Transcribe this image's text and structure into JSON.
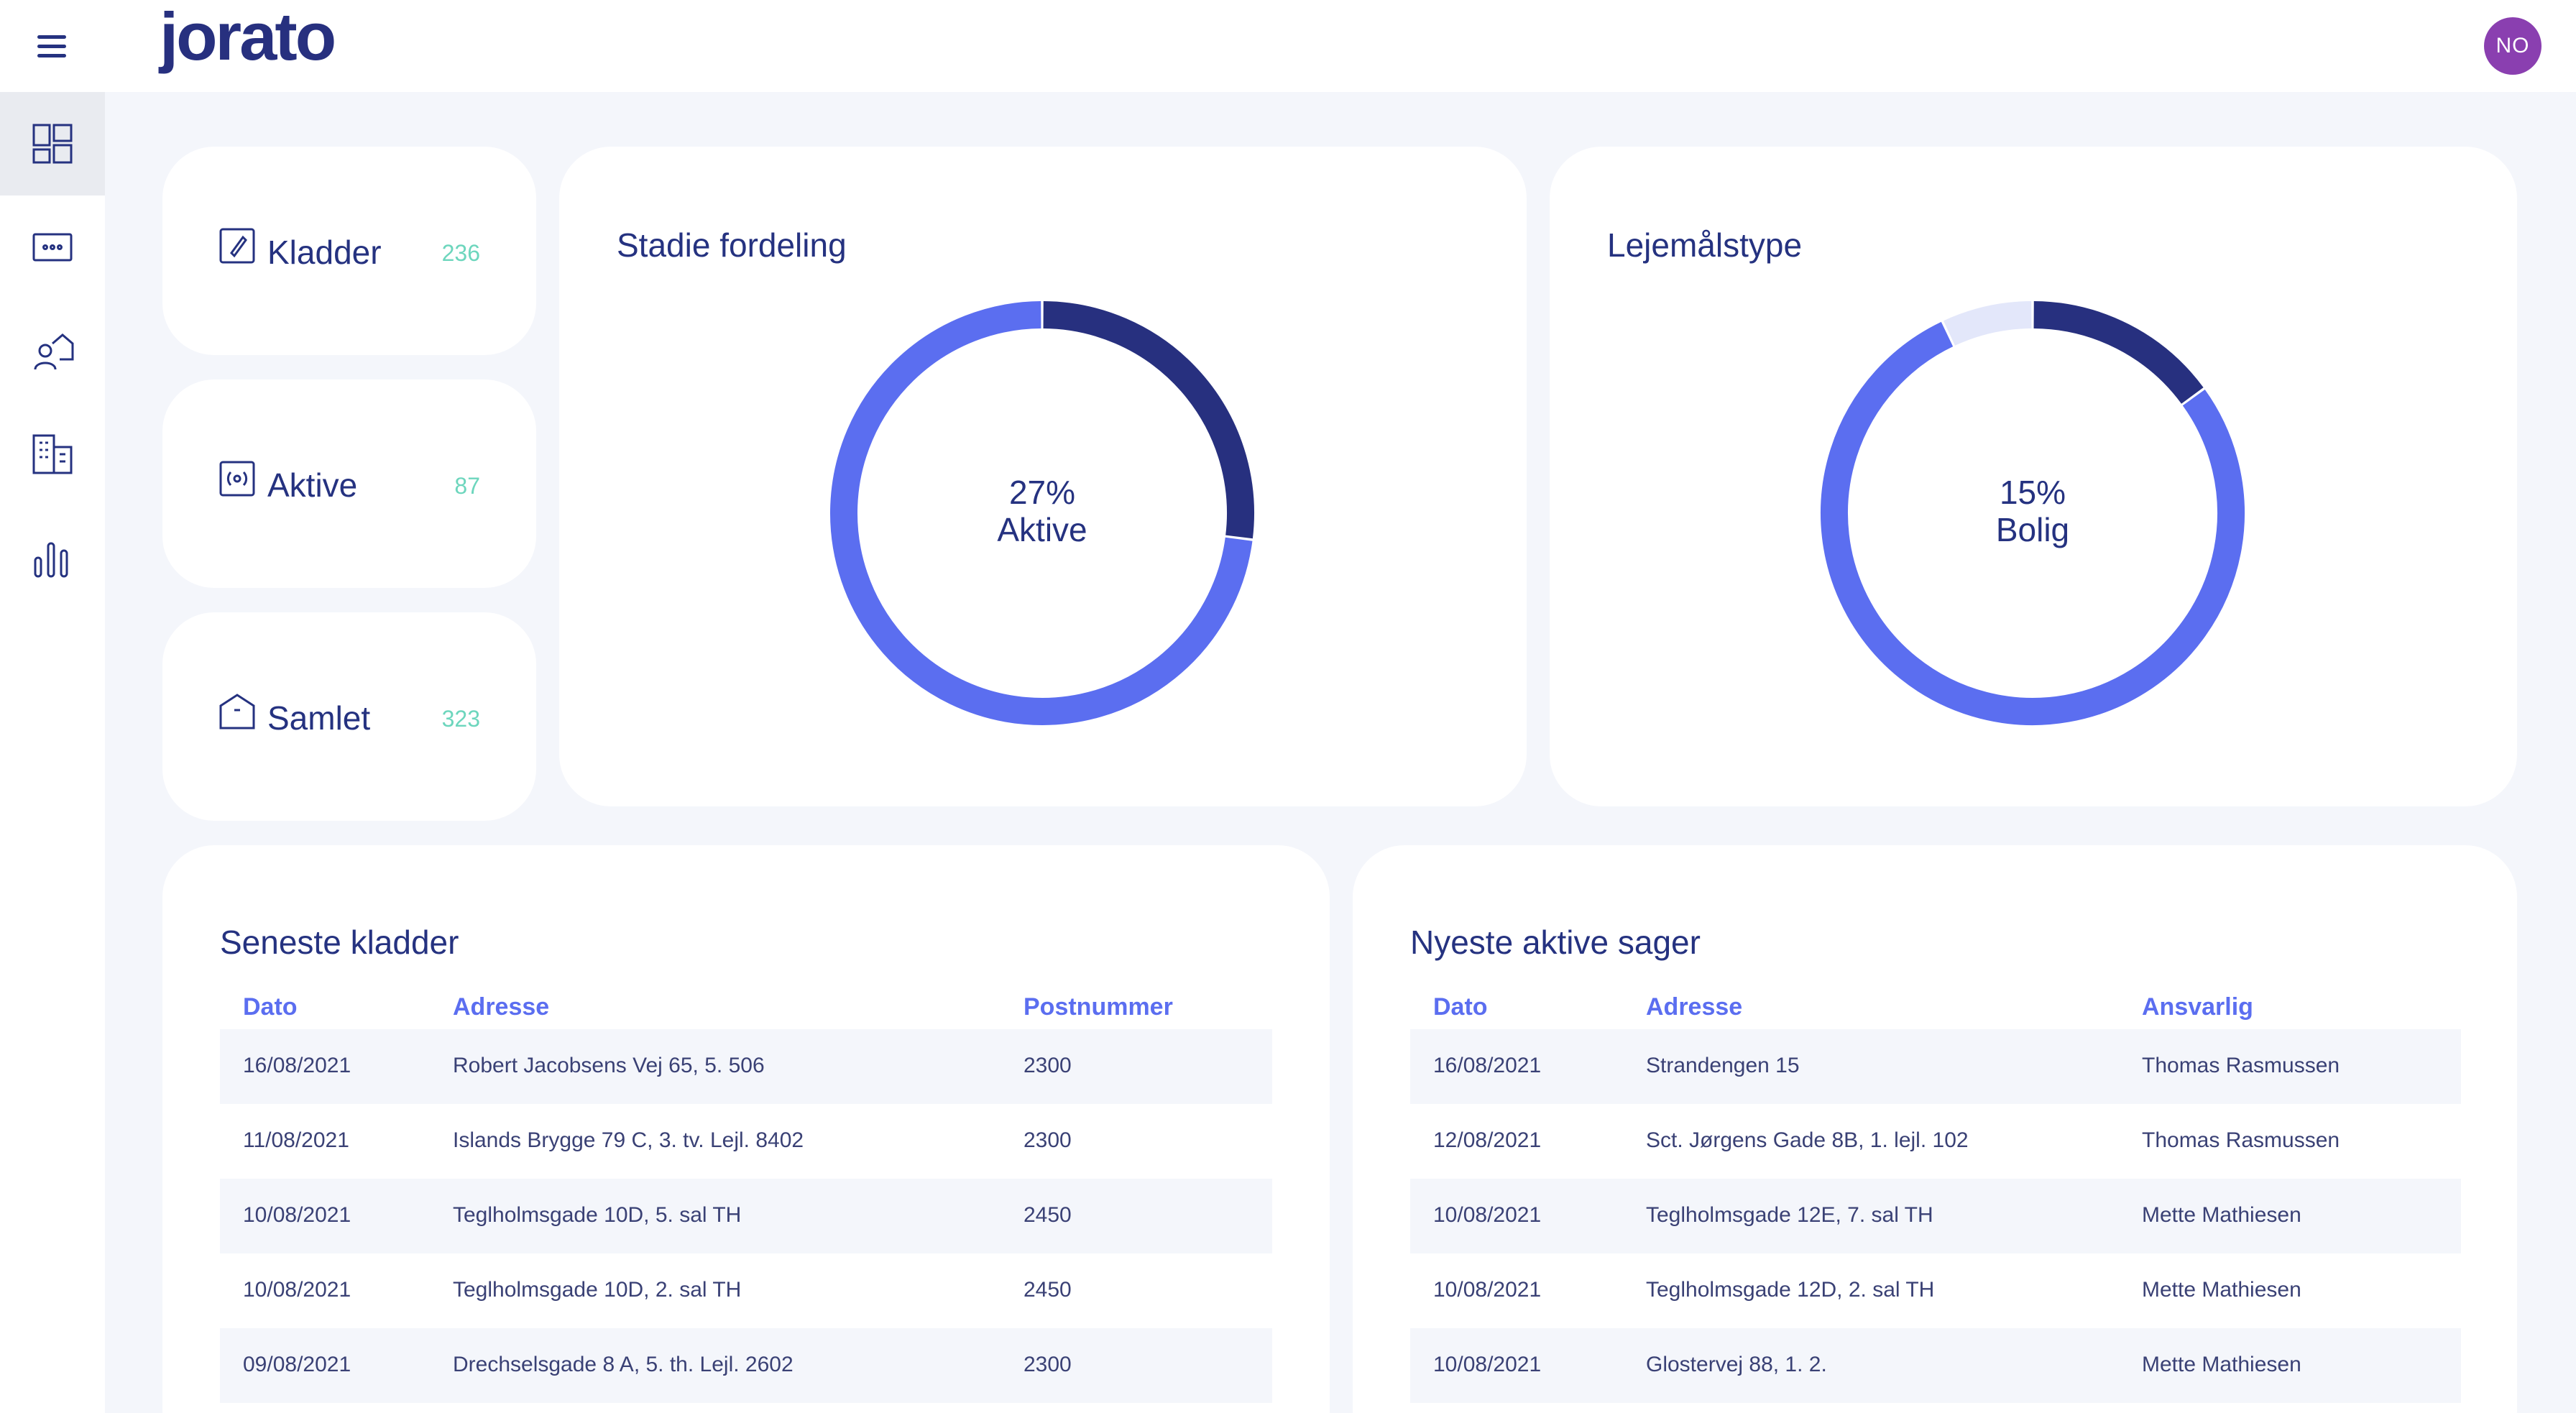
{
  "app": {
    "logo": "jorato",
    "avatar_initials": "NO"
  },
  "sidebar": {
    "items": [
      {
        "name": "dashboard",
        "icon": "dashboard-icon",
        "active": true
      },
      {
        "name": "cases",
        "icon": "ellipsis-box-icon",
        "active": false
      },
      {
        "name": "tenants",
        "icon": "person-house-icon",
        "active": false
      },
      {
        "name": "properties",
        "icon": "building-icon",
        "active": false
      },
      {
        "name": "reports",
        "icon": "bar-chart-icon",
        "active": false
      }
    ]
  },
  "stats": [
    {
      "label": "Kladder",
      "count": "236",
      "icon": "edit-icon"
    },
    {
      "label": "Aktive",
      "count": "87",
      "icon": "broadcast-icon"
    },
    {
      "label": "Samlet",
      "count": "323",
      "icon": "house-icon"
    }
  ],
  "stage_chart": {
    "title": "Stadie fordeling",
    "center_value": "27%",
    "center_label": "Aktive"
  },
  "lease_chart": {
    "title": "Lejemålstype",
    "center_value": "15%",
    "center_label": "Bolig"
  },
  "chart_data": [
    {
      "type": "pie",
      "title": "Stadie fordeling",
      "values": [
        27,
        73
      ],
      "colors": [
        "#27307f",
        "#5b6ef0"
      ]
    },
    {
      "type": "pie",
      "title": "Lejemålstype",
      "values": [
        15,
        78,
        7
      ],
      "colors": [
        "#27307f",
        "#5b6ef0",
        "#e3e7fa"
      ]
    }
  ],
  "drafts_table": {
    "title": "Seneste kladder",
    "columns": [
      "Dato",
      "Adresse",
      "Postnummer"
    ],
    "rows": [
      [
        "16/08/2021",
        "Robert Jacobsens Vej 65, 5. 506",
        "2300"
      ],
      [
        "11/08/2021",
        "Islands Brygge 79 C, 3. tv. Lejl. 8402",
        "2300"
      ],
      [
        "10/08/2021",
        "Teglholmsgade 10D, 5. sal TH",
        "2450"
      ],
      [
        "10/08/2021",
        "Teglholmsgade 10D, 2. sal TH",
        "2450"
      ],
      [
        "09/08/2021",
        "Drechselsgade 8 A, 5. th. Lejl. 2602",
        "2300"
      ]
    ]
  },
  "active_table": {
    "title": "Nyeste aktive sager",
    "columns": [
      "Dato",
      "Adresse",
      "Ansvarlig"
    ],
    "rows": [
      [
        "16/08/2021",
        "Strandengen 15",
        "Thomas Rasmussen"
      ],
      [
        "12/08/2021",
        "Sct. Jørgens Gade 8B, 1. lejl. 102",
        "Thomas Rasmussen"
      ],
      [
        "10/08/2021",
        "Teglholmsgade 12E, 7. sal TH",
        "Mette Mathiesen"
      ],
      [
        "10/08/2021",
        "Teglholmsgade 12D, 2. sal TH",
        "Mette Mathiesen"
      ],
      [
        "10/08/2021",
        "Glostervej 88, 1. 2.",
        "Mette Mathiesen"
      ]
    ]
  }
}
